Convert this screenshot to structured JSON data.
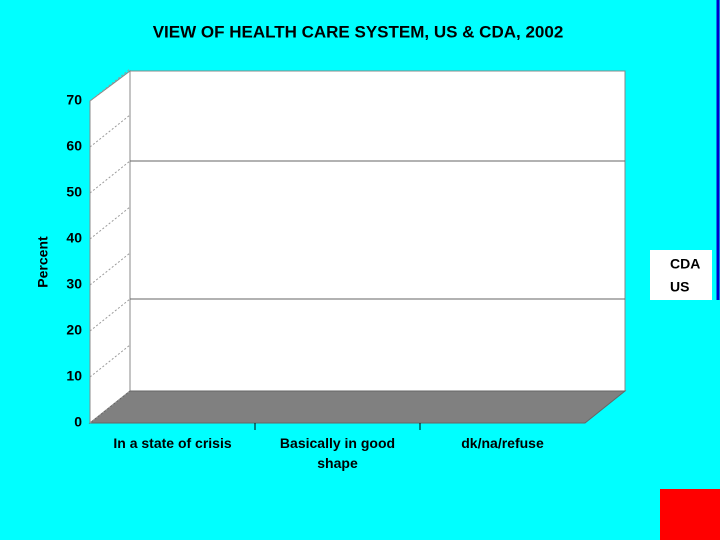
{
  "chart_data": {
    "type": "bar3d",
    "title": "VIEW OF HEALTH CARE SYSTEM, US & CDA, 2002",
    "y_label": "Percent",
    "categories": [
      "In a state of crisis",
      "Basically in good shape",
      "dk/na/refuse"
    ],
    "series": [
      {
        "name": "CDA",
        "values": [
          null,
          null,
          null
        ]
      },
      {
        "name": "US",
        "values": [
          null,
          null,
          null
        ]
      }
    ],
    "ylim": [
      0,
      70
    ],
    "yticks": [
      0,
      10,
      20,
      30,
      40,
      50,
      60,
      70
    ]
  }
}
